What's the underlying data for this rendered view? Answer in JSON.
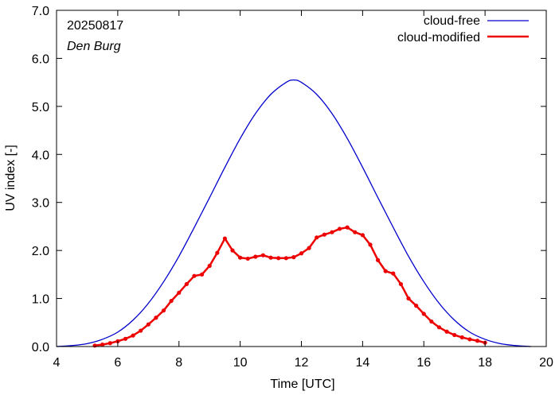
{
  "chart_data": {
    "type": "line",
    "xlabel": "Time  [UTC]",
    "ylabel": "UV index  [-]",
    "xlim": [
      4,
      20
    ],
    "ylim": [
      0,
      7
    ],
    "x_ticks": [
      "4",
      "6",
      "8",
      "10",
      "12",
      "14",
      "16",
      "18",
      "20"
    ],
    "y_ticks": [
      "0.0",
      "1.0",
      "2.0",
      "3.0",
      "4.0",
      "5.0",
      "6.0",
      "7.0"
    ],
    "annotations": {
      "date": "20250817",
      "location": "Den Burg"
    },
    "legend_position": "top-right",
    "grid": false,
    "series": [
      {
        "name": "cloud-free",
        "color": "#0000cc",
        "markers": false,
        "x": [
          4.0,
          4.5,
          5.0,
          5.5,
          6.0,
          6.5,
          7.0,
          7.5,
          8.0,
          8.5,
          9.0,
          9.5,
          10.0,
          10.5,
          11.0,
          11.5,
          11.75,
          12.0,
          12.5,
          13.0,
          13.5,
          14.0,
          14.5,
          15.0,
          15.5,
          16.0,
          16.5,
          17.0,
          17.5,
          18.0,
          18.5,
          19.0,
          19.5
        ],
        "y": [
          0.0,
          0.02,
          0.06,
          0.15,
          0.3,
          0.55,
          0.9,
          1.35,
          1.88,
          2.48,
          3.1,
          3.73,
          4.33,
          4.85,
          5.25,
          5.5,
          5.55,
          5.5,
          5.25,
          4.85,
          4.33,
          3.73,
          3.1,
          2.48,
          1.88,
          1.35,
          0.9,
          0.55,
          0.3,
          0.15,
          0.06,
          0.02,
          0.0
        ]
      },
      {
        "name": "cloud-modified",
        "color": "#ee0000",
        "markers": true,
        "x": [
          5.25,
          5.5,
          5.75,
          6.0,
          6.25,
          6.5,
          6.75,
          7.0,
          7.25,
          7.5,
          7.75,
          8.0,
          8.25,
          8.5,
          8.75,
          9.0,
          9.25,
          9.5,
          9.75,
          10.0,
          10.25,
          10.5,
          10.75,
          11.0,
          11.25,
          11.5,
          11.75,
          12.0,
          12.25,
          12.5,
          12.75,
          13.0,
          13.25,
          13.5,
          13.75,
          14.0,
          14.25,
          14.5,
          14.75,
          15.0,
          15.25,
          15.5,
          15.75,
          16.0,
          16.25,
          16.5,
          16.75,
          17.0,
          17.25,
          17.5,
          17.75,
          18.0
        ],
        "y": [
          0.02,
          0.04,
          0.07,
          0.11,
          0.16,
          0.23,
          0.33,
          0.46,
          0.6,
          0.75,
          0.95,
          1.12,
          1.3,
          1.47,
          1.5,
          1.68,
          1.95,
          2.25,
          2.0,
          1.85,
          1.83,
          1.87,
          1.9,
          1.85,
          1.84,
          1.84,
          1.86,
          1.94,
          2.05,
          2.27,
          2.33,
          2.38,
          2.45,
          2.48,
          2.38,
          2.32,
          2.12,
          1.8,
          1.57,
          1.52,
          1.3,
          1.0,
          0.85,
          0.68,
          0.52,
          0.4,
          0.31,
          0.24,
          0.19,
          0.15,
          0.12,
          0.08
        ]
      }
    ]
  }
}
